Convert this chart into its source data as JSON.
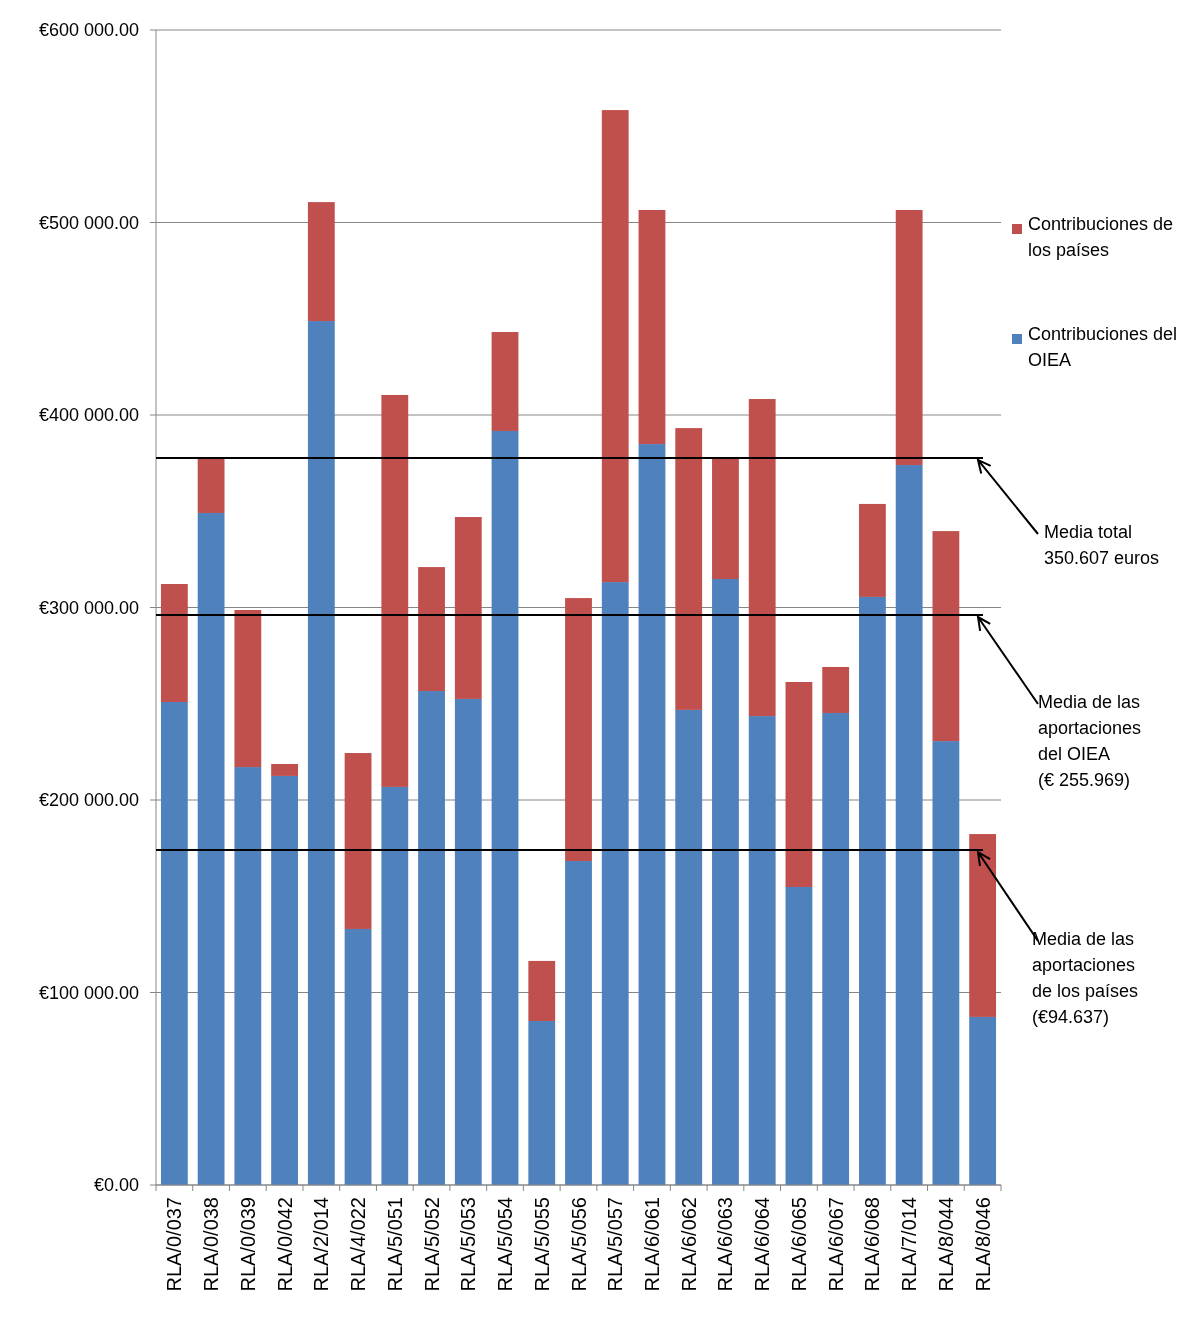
{
  "chart_data": {
    "type": "bar",
    "stacked": true,
    "categories": [
      "RLA/0/037",
      "RLA/0/038",
      "RLA/0/039",
      "RLA/0/042",
      "RLA/2/014",
      "RLA/4/022",
      "RLA/5/051",
      "RLA/5/052",
      "RLA/5/053",
      "RLA/5/054",
      "RLA/5/055",
      "RLA/5/056",
      "RLA/5/057",
      "RLA/6/061",
      "RLA/6/062",
      "RLA/6/063",
      "RLA/6/064",
      "RLA/6/065",
      "RLA/6/067",
      "RLA/6/068",
      "RLA/7/014",
      "RLA/8/044",
      "RLA/8/046"
    ],
    "series": [
      {
        "name": "Contribuciones del OIEA",
        "color": "#4f81bd",
        "values": [
          250900,
          349100,
          217100,
          212500,
          448800,
          133000,
          206800,
          256600,
          252500,
          391700,
          85200,
          168300,
          313200,
          384900,
          246800,
          314800,
          243600,
          154800,
          245200,
          305500,
          374000,
          230600,
          87300
        ]
      },
      {
        "name": "Contribuciones de los países",
        "color": "#c0504d",
        "values": [
          61300,
          28600,
          81600,
          6200,
          61800,
          91400,
          203600,
          64400,
          94500,
          51400,
          31200,
          136600,
          245200,
          121600,
          146400,
          62900,
          164700,
          106500,
          23900,
          48300,
          132500,
          109100,
          95000
        ]
      }
    ],
    "ylim": [
      0,
      600000
    ],
    "yticks": [
      {
        "value": 0,
        "label": "€0.00"
      },
      {
        "value": 100000,
        "label": "€100 000.00"
      },
      {
        "value": 200000,
        "label": "€200 000.00"
      },
      {
        "value": 300000,
        "label": "€300 000.00"
      },
      {
        "value": 400000,
        "label": "€400 000.00"
      },
      {
        "value": 500000,
        "label": "€500 000.00"
      },
      {
        "value": 600000,
        "label": "€600 000.00"
      }
    ],
    "grid": "y",
    "legend": "right",
    "ref_lines": [
      {
        "axis": "y",
        "value": 377700,
        "label": "Media total\n350.607 euros",
        "color": "#000000"
      },
      {
        "axis": "y",
        "value": 296100,
        "label": "Media de las\naportaciones\ndel OIEA\n(€ 255.969)",
        "color": "#000000"
      },
      {
        "axis": "y",
        "value": 174000,
        "label": "Media de las\naportaciones\nde los países\n(€94.637)",
        "color": "#000000"
      }
    ]
  }
}
